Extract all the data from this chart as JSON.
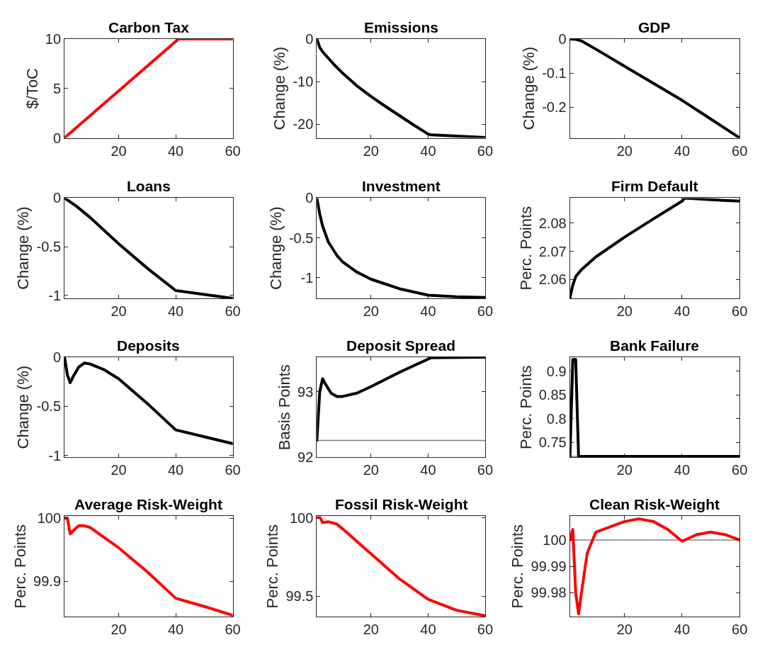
{
  "chart_data": [
    {
      "type": "line",
      "title": "Carbon Tax",
      "ylabel": "$/ToC",
      "x": [
        1,
        41,
        60
      ],
      "series": [
        {
          "color": "#ff0000",
          "values": [
            0,
            10,
            10
          ]
        }
      ],
      "xlim": [
        1,
        60
      ],
      "xticks": [
        20,
        40,
        60
      ],
      "ylim": [
        0,
        10
      ],
      "yticks": [
        0,
        5,
        10
      ]
    },
    {
      "type": "line",
      "title": "Emissions",
      "ylabel": "Change (%)",
      "x": [
        1,
        2,
        3,
        5,
        7,
        10,
        15,
        20,
        25,
        30,
        35,
        40,
        41,
        50,
        60
      ],
      "series": [
        {
          "color": "#000000",
          "values": [
            0,
            -2,
            -3,
            -4.5,
            -6,
            -8,
            -11,
            -13.5,
            -15.8,
            -18,
            -20.2,
            -22.3,
            -22.5,
            -22.8,
            -23.1
          ]
        }
      ],
      "xlim": [
        1,
        60
      ],
      "xticks": [
        20,
        40,
        60
      ],
      "ylim": [
        -23.2,
        0
      ],
      "yticks": [
        -20,
        -10,
        0
      ]
    },
    {
      "type": "line",
      "title": "GDP",
      "ylabel": "Change (%)",
      "x": [
        1,
        3,
        5,
        10,
        15,
        20,
        30,
        40,
        50,
        60
      ],
      "series": [
        {
          "color": "#000000",
          "values": [
            0,
            -0.001,
            -0.006,
            -0.03,
            -0.055,
            -0.08,
            -0.13,
            -0.18,
            -0.235,
            -0.29
          ]
        }
      ],
      "xlim": [
        1,
        60
      ],
      "xticks": [
        20,
        40,
        60
      ],
      "ylim": [
        -0.29,
        0
      ],
      "yticks": [
        -0.2,
        -0.1,
        0
      ]
    },
    {
      "type": "line",
      "title": "Loans",
      "ylabel": "Change (%)",
      "x": [
        1,
        5,
        10,
        20,
        30,
        40,
        50,
        60
      ],
      "series": [
        {
          "color": "#000000",
          "values": [
            0,
            -0.08,
            -0.2,
            -0.47,
            -0.72,
            -0.95,
            -0.99,
            -1.03
          ]
        }
      ],
      "xlim": [
        1,
        60
      ],
      "xticks": [
        20,
        40,
        60
      ],
      "ylim": [
        -1.03,
        0
      ],
      "yticks": [
        -1,
        -0.5,
        0
      ]
    },
    {
      "type": "line",
      "title": "Investment",
      "ylabel": "Change (%)",
      "x": [
        1,
        2,
        3,
        5,
        8,
        10,
        15,
        20,
        30,
        40,
        50,
        60
      ],
      "series": [
        {
          "color": "#000000",
          "values": [
            0,
            -0.2,
            -0.35,
            -0.55,
            -0.72,
            -0.8,
            -0.93,
            -1.02,
            -1.14,
            -1.22,
            -1.24,
            -1.25
          ]
        }
      ],
      "xlim": [
        1,
        60
      ],
      "xticks": [
        20,
        40,
        60
      ],
      "ylim": [
        -1.26,
        0
      ],
      "yticks": [
        -1,
        -0.5,
        0
      ]
    },
    {
      "type": "line",
      "title": "Firm Default",
      "ylabel": "Perc. Points",
      "x": [
        1,
        2,
        3,
        5,
        10,
        20,
        30,
        40,
        41,
        50,
        60
      ],
      "series": [
        {
          "color": "#000000",
          "values": [
            2.0535,
            2.058,
            2.061,
            2.0635,
            2.068,
            2.075,
            2.0815,
            2.0878,
            2.0889,
            2.0883,
            2.0878
          ]
        }
      ],
      "xlim": [
        1,
        60
      ],
      "xticks": [
        20,
        40,
        60
      ],
      "ylim": [
        2.0533,
        2.0889
      ],
      "yticks": [
        2.06,
        2.07,
        2.08
      ]
    },
    {
      "type": "line",
      "title": "Deposits",
      "ylabel": "Change (%)",
      "x": [
        1,
        2,
        3,
        4,
        6,
        8,
        10,
        15,
        20,
        30,
        40,
        50,
        60
      ],
      "series": [
        {
          "color": "#000000",
          "values": [
            0,
            -0.18,
            -0.26,
            -0.2,
            -0.1,
            -0.06,
            -0.07,
            -0.13,
            -0.22,
            -0.47,
            -0.74,
            -0.81,
            -0.88
          ]
        }
      ],
      "xlim": [
        1,
        60
      ],
      "xticks": [
        20,
        40,
        60
      ],
      "ylim": [
        -1.02,
        0
      ],
      "yticks": [
        -1,
        -0.5,
        0
      ]
    },
    {
      "type": "line",
      "title": "Deposit Spread",
      "ylabel": "Basis Points",
      "x": [
        1,
        2,
        3,
        4,
        6,
        8,
        10,
        15,
        20,
        30,
        40,
        41,
        60
      ],
      "series": [
        {
          "color": "#000000",
          "values": [
            92.26,
            93.0,
            93.2,
            93.12,
            92.98,
            92.93,
            92.93,
            92.98,
            93.08,
            93.3,
            93.5,
            93.52,
            93.53
          ]
        }
      ],
      "xlim": [
        1,
        60
      ],
      "xticks": [
        20,
        40,
        60
      ],
      "ylim": [
        92,
        93.53
      ],
      "yticks": [
        92,
        93
      ],
      "ref_lines": [
        {
          "axis": "y",
          "value": 92.26,
          "color": "#808080"
        }
      ]
    },
    {
      "type": "line",
      "title": "Bank Failure",
      "ylabel": "Perc. Points",
      "x": [
        1,
        2,
        3,
        4,
        60
      ],
      "series": [
        {
          "color": "#000000",
          "values": [
            0.72,
            0.925,
            0.925,
            0.72,
            0.72
          ]
        }
      ],
      "xlim": [
        1,
        60
      ],
      "xticks": [
        20,
        40,
        60
      ],
      "ylim": [
        0.718,
        0.93
      ],
      "yticks": [
        0.75,
        0.8,
        0.85,
        0.9
      ],
      "ref_lines": [
        {
          "axis": "y",
          "value": 0.72,
          "color": "#808080"
        }
      ]
    },
    {
      "type": "line",
      "title": "Average Risk-Weight",
      "ylabel": "Perc. Points",
      "x": [
        1,
        2,
        3,
        4,
        6,
        8,
        10,
        20,
        30,
        40,
        50,
        60
      ],
      "series": [
        {
          "color": "#ff0000",
          "values": [
            100.0,
            100.0,
            99.975,
            99.98,
            99.988,
            99.988,
            99.985,
            99.953,
            99.915,
            99.873,
            99.86,
            99.846
          ]
        }
      ],
      "xlim": [
        1,
        60
      ],
      "xticks": [
        20,
        40,
        60
      ],
      "ylim": [
        99.844,
        100.003
      ],
      "yticks": [
        99.9,
        100
      ]
    },
    {
      "type": "line",
      "title": "Fossil Risk-Weight",
      "ylabel": "Perc. Points",
      "x": [
        1,
        2,
        3,
        5,
        8,
        10,
        20,
        30,
        40,
        50,
        60
      ],
      "series": [
        {
          "color": "#ff0000",
          "values": [
            100,
            100.005,
            99.97,
            99.975,
            99.96,
            99.93,
            99.77,
            99.61,
            99.48,
            99.41,
            99.375
          ]
        }
      ],
      "xlim": [
        1,
        60
      ],
      "xticks": [
        20,
        40,
        60
      ],
      "ylim": [
        99.37,
        100.01
      ],
      "yticks": [
        99.5,
        100
      ]
    },
    {
      "type": "line",
      "title": "Clean Risk-Weight",
      "ylabel": "Perc. Points",
      "x": [
        1,
        2,
        3,
        4,
        5,
        7,
        10,
        15,
        20,
        25,
        30,
        35,
        40,
        45,
        50,
        55,
        60
      ],
      "series": [
        {
          "color": "#ff0000",
          "values": [
            100.0,
            100.004,
            99.98,
            99.972,
            99.98,
            99.995,
            100.003,
            100.005,
            100.007,
            100.008,
            100.007,
            100.004,
            99.9995,
            100.002,
            100.003,
            100.002,
            100.0
          ]
        }
      ],
      "xlim": [
        1,
        60
      ],
      "xticks": [
        20,
        40,
        60
      ],
      "ylim": [
        99.971,
        100.009
      ],
      "yticks": [
        99.98,
        99.99,
        100
      ],
      "ref_lines": [
        {
          "axis": "y",
          "value": 100,
          "color": "#808080"
        }
      ]
    }
  ]
}
